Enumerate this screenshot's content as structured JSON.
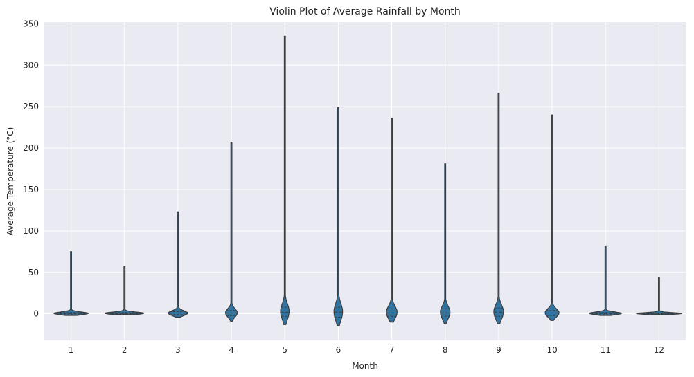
{
  "chart_data": {
    "type": "violin",
    "title": "Violin Plot of Average Rainfall by Month",
    "xlabel": "Month",
    "ylabel": "Average Temperature (°C)",
    "categories": [
      "1",
      "2",
      "3",
      "4",
      "5",
      "6",
      "7",
      "8",
      "9",
      "10",
      "11",
      "12"
    ],
    "ylim": [
      -32,
      352
    ],
    "yticks": [
      0,
      50,
      100,
      150,
      200,
      250,
      300,
      350
    ],
    "grid": true,
    "violin_color": "#3274a1",
    "edge_color": "#3b3b3b",
    "background_color": "#eaeaf2",
    "grid_color": "#ffffff",
    "violins": [
      {
        "category": "1",
        "min": -2,
        "q1": -0.5,
        "median": 0.5,
        "q3": 1.5,
        "max": 75,
        "max_half_width": 0.32
      },
      {
        "category": "2",
        "min": -1,
        "q1": -0.3,
        "median": 0.5,
        "q3": 1.5,
        "max": 57,
        "max_half_width": 0.36
      },
      {
        "category": "3",
        "min": -4,
        "q1": -1,
        "median": 1,
        "q3": 2.5,
        "max": 123,
        "max_half_width": 0.18
      },
      {
        "category": "4",
        "min": -9,
        "q1": -2,
        "median": 1,
        "q3": 4,
        "max": 207,
        "max_half_width": 0.11
      },
      {
        "category": "5",
        "min": -13,
        "q1": -3,
        "median": 2,
        "q3": 8,
        "max": 335,
        "max_half_width": 0.08
      },
      {
        "category": "6",
        "min": -14,
        "q1": -4,
        "median": 2,
        "q3": 8,
        "max": 249,
        "max_half_width": 0.08
      },
      {
        "category": "7",
        "min": -10,
        "q1": -3,
        "median": 1,
        "q3": 6,
        "max": 236,
        "max_half_width": 0.1
      },
      {
        "category": "8",
        "min": -12,
        "q1": -3,
        "median": 1,
        "q3": 6,
        "max": 181,
        "max_half_width": 0.09
      },
      {
        "category": "9",
        "min": -12,
        "q1": -3,
        "median": 2,
        "q3": 7,
        "max": 266,
        "max_half_width": 0.09
      },
      {
        "category": "10",
        "min": -8,
        "q1": -2,
        "median": 1,
        "q3": 4,
        "max": 240,
        "max_half_width": 0.13
      },
      {
        "category": "11",
        "min": -2,
        "q1": -0.5,
        "median": 0.5,
        "q3": 1.5,
        "max": 82,
        "max_half_width": 0.3
      },
      {
        "category": "12",
        "min": -1,
        "q1": -0.3,
        "median": 0.3,
        "q3": 1,
        "max": 44,
        "max_half_width": 0.42
      }
    ]
  }
}
